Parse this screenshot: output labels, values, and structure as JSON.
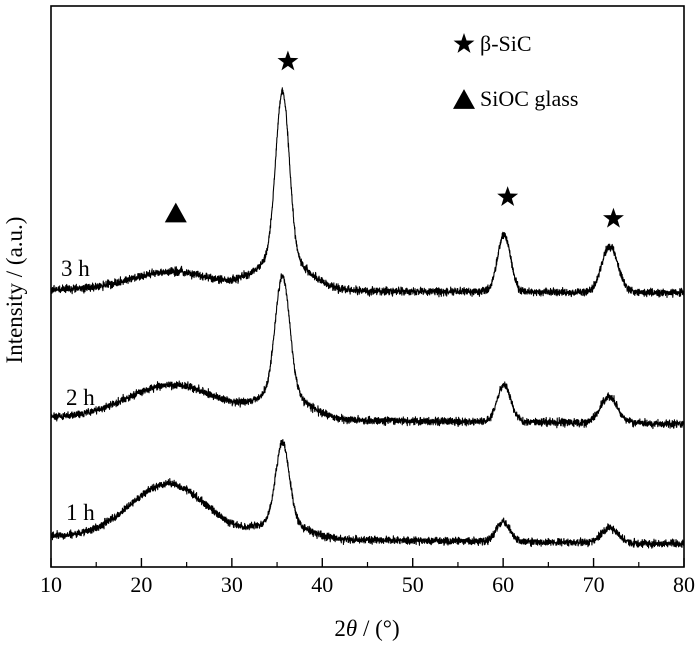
{
  "chart_data": {
    "type": "line",
    "title": "",
    "xlabel_prefix": "2",
    "xlabel_symbol": "θ",
    "xlabel_suffix": " / (°)",
    "ylabel": "Intensity / (a.u.)",
    "xlim": [
      10,
      80
    ],
    "x_ticks": [
      10,
      20,
      30,
      40,
      50,
      60,
      70,
      80
    ],
    "x_tick_labels": [
      "10",
      "20",
      "30",
      "40",
      "50",
      "60",
      "70",
      "80"
    ],
    "y_ticks_shown": false,
    "grid": false,
    "legend_position": "top-right",
    "legend": [
      {
        "marker": "star",
        "label": "β-SiC"
      },
      {
        "marker": "triangle",
        "label": "SiOC glass"
      }
    ],
    "series": [
      {
        "name": "1 h",
        "baseline": 1.0,
        "slope": -0.25,
        "noise": 0.12,
        "peaks": [
          {
            "center": 23.0,
            "width": 4.2,
            "height": 1.75
          },
          {
            "center": 35.6,
            "width": 0.75,
            "height": 2.55
          },
          {
            "center": 35.6,
            "width": 2.6,
            "height": 0.55
          },
          {
            "center": 60.0,
            "width": 0.75,
            "height": 0.65
          },
          {
            "center": 71.8,
            "width": 0.95,
            "height": 0.48
          }
        ]
      },
      {
        "name": "2 h",
        "baseline": 4.85,
        "slope": -0.2,
        "noise": 0.12,
        "peaks": [
          {
            "center": 23.5,
            "width": 5.0,
            "height": 1.1
          },
          {
            "center": 35.6,
            "width": 0.8,
            "height": 3.8
          },
          {
            "center": 35.6,
            "width": 2.8,
            "height": 0.8
          },
          {
            "center": 60.1,
            "width": 0.75,
            "height": 1.2
          },
          {
            "center": 71.7,
            "width": 0.95,
            "height": 0.85
          }
        ]
      },
      {
        "name": "3 h",
        "baseline": 9.0,
        "slope": -0.1,
        "noise": 0.12,
        "peaks": [
          {
            "center": 23.5,
            "width": 4.5,
            "height": 0.6
          },
          {
            "center": 35.6,
            "width": 0.75,
            "height": 5.4
          },
          {
            "center": 35.6,
            "width": 2.8,
            "height": 1.05
          },
          {
            "center": 60.1,
            "width": 0.72,
            "height": 1.85
          },
          {
            "center": 71.8,
            "width": 0.9,
            "height": 1.48
          }
        ]
      }
    ],
    "annotations": [
      {
        "marker": "triangle",
        "x": 23.8,
        "y": 11.5
      },
      {
        "marker": "star",
        "x": 36.2,
        "y": 16.4
      },
      {
        "marker": "star",
        "x": 60.5,
        "y": 12.0
      },
      {
        "marker": "star",
        "x": 72.2,
        "y": 11.3
      }
    ],
    "ylim": [
      0,
      18.2
    ]
  }
}
